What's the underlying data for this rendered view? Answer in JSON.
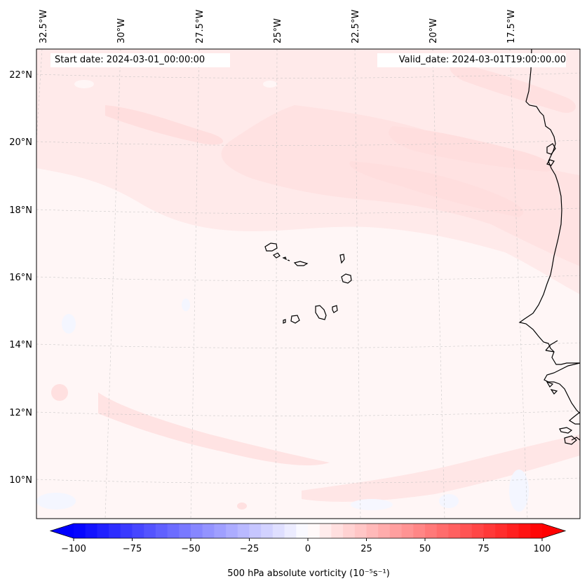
{
  "map": {
    "start_date": "Start date: 2024-03-01_00:00:00",
    "valid_date": "Valid_date: 2024-03-01T19:00:00.00",
    "lon_labels": [
      "32.5°W",
      "30°W",
      "27.5°W",
      "25°W",
      "22.5°W",
      "20°W",
      "17.5°W"
    ],
    "lat_labels": [
      "22°N",
      "20°N",
      "18°N",
      "16°N",
      "14°N",
      "12°N",
      "10°N"
    ],
    "field_colors": {
      "background": "#fff6f6",
      "band": "#ffe6e6",
      "weak_negative": "#f4f6ff"
    }
  },
  "colorbar": {
    "label": "500 hPa absolute vorticity (10⁻⁵s⁻¹)",
    "ticks": [
      "−100",
      "−75",
      "−50",
      "−25",
      "0",
      "25",
      "50",
      "75",
      "100"
    ],
    "min": -100,
    "max": 100,
    "step": 5
  }
}
